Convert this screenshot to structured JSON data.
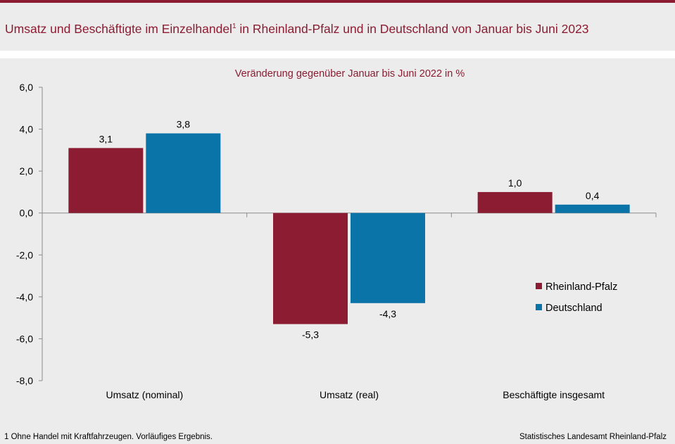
{
  "header": {
    "title": "Umsatz und Beschäftigte im Einzelhandel",
    "title_footnote_mark": "1",
    "title_suffix": " in Rheinland-Pfalz und in Deutschland von Januar bis Juni 2023"
  },
  "chart_data": {
    "type": "bar",
    "title": "Veränderung gegenüber Januar bis Juni 2022 in %",
    "categories": [
      "Umsatz (nominal)",
      "Umsatz (real)",
      "Beschäftigte insgesamt"
    ],
    "series": [
      {
        "name": "Rheinland-Pfalz",
        "values": [
          3.1,
          -5.3,
          1.0
        ],
        "color": "#8b1c32"
      },
      {
        "name": "Deutschland",
        "values": [
          3.8,
          -4.3,
          0.4
        ],
        "color": "#0a73a8"
      }
    ],
    "value_labels": [
      [
        "3,1",
        "-5,3",
        "1,0"
      ],
      [
        "3,8",
        "-4,3",
        "0,4"
      ]
    ],
    "yticks": [
      6,
      4,
      2,
      0,
      -2,
      -4,
      -6,
      -8
    ],
    "ytick_labels": [
      "6,0",
      "4,0",
      "2,0",
      "0,0",
      "-2,0",
      "-4,0",
      "-6,0",
      "-8,0"
    ],
    "ylim": [
      -8,
      6
    ],
    "grid": false,
    "legend_position": "right"
  },
  "footer": {
    "footnote": "1 Ohne Handel mit Kraftfahrzeugen. Vorläufiges Ergebnis.",
    "source": "Statistisches Landesamt Rheinland-Pfalz"
  }
}
